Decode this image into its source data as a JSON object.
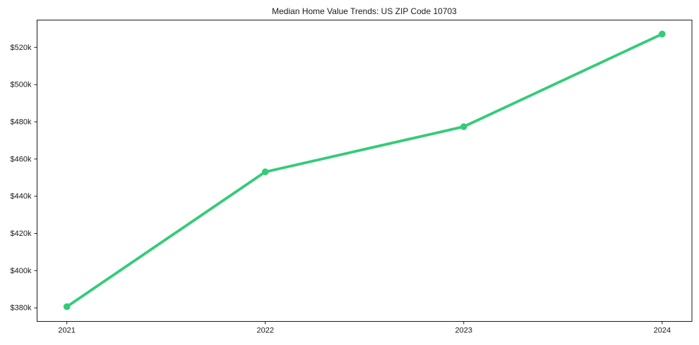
{
  "chart_data": {
    "type": "line",
    "title": "Median Home Value Trends: US ZIP Code 10703",
    "xlabel": "",
    "ylabel": "",
    "x": [
      2021,
      2022,
      2023,
      2024
    ],
    "series": [
      {
        "name": "median-home-value",
        "values": [
          380600,
          453100,
          477400,
          527200
        ],
        "color": "#33cc77",
        "marker": "circle"
      }
    ],
    "xticks": [
      {
        "value": 2021,
        "label": "2021"
      },
      {
        "value": 2022,
        "label": "2022"
      },
      {
        "value": 2023,
        "label": "2023"
      },
      {
        "value": 2024,
        "label": "2024"
      }
    ],
    "yticks": [
      {
        "value": 380000,
        "label": "$380k"
      },
      {
        "value": 400000,
        "label": "$400k"
      },
      {
        "value": 420000,
        "label": "$420k"
      },
      {
        "value": 440000,
        "label": "$440k"
      },
      {
        "value": 460000,
        "label": "$460k"
      },
      {
        "value": 480000,
        "label": "$480k"
      },
      {
        "value": 500000,
        "label": "$500k"
      },
      {
        "value": 520000,
        "label": "$520k"
      }
    ],
    "xlim": [
      2020.85,
      2024.15
    ],
    "ylim": [
      372700,
      534700
    ],
    "grid": false,
    "legend_position": "none",
    "axes_color": "#1a1a1a",
    "text_color": "#1a1a1a",
    "background_color": "#ffffff"
  }
}
